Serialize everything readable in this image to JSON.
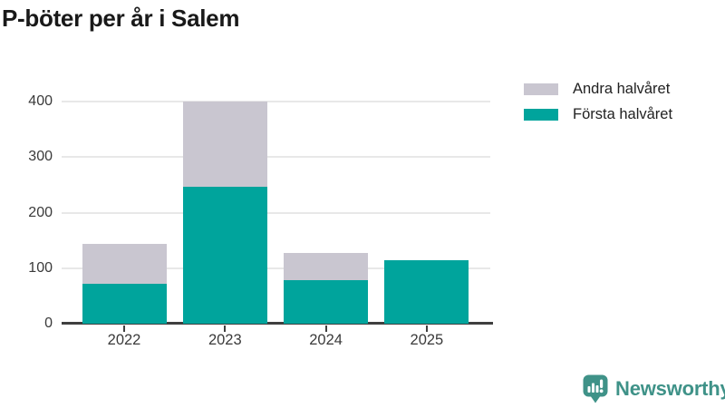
{
  "page": {
    "title": "P-böter per år i Salem"
  },
  "chart_data": {
    "type": "bar",
    "stacked": true,
    "title": "P-böter per år i Salem",
    "categories": [
      "2022",
      "2023",
      "2024",
      "2025"
    ],
    "series": [
      {
        "name": "Första halvåret",
        "color": "#00a49c",
        "values": [
          72,
          247,
          78,
          114
        ]
      },
      {
        "name": "Andra halvåret",
        "color": "#c9c6d0",
        "values": [
          71,
          153,
          50,
          0
        ]
      }
    ],
    "ylim": [
      0,
      400
    ],
    "yticks": [
      0,
      100,
      200,
      300,
      400
    ],
    "xlabel": "",
    "ylabel": "",
    "grid": true,
    "legend_position": "top-right"
  },
  "legend": {
    "items": [
      {
        "label": "Andra halvåret",
        "color": "#c9c6d0"
      },
      {
        "label": "Första halvåret",
        "color": "#00a49c"
      }
    ]
  },
  "branding": {
    "logo_text": "Newsworthy",
    "logo_color": "#3f9288",
    "logo_icon": "bar-chart-speech-bubble"
  },
  "colors": {
    "axis": "#3f3f3f",
    "gridline": "#e8e8e8",
    "tick_text": "#3a3a3a",
    "title_text": "#191919"
  }
}
